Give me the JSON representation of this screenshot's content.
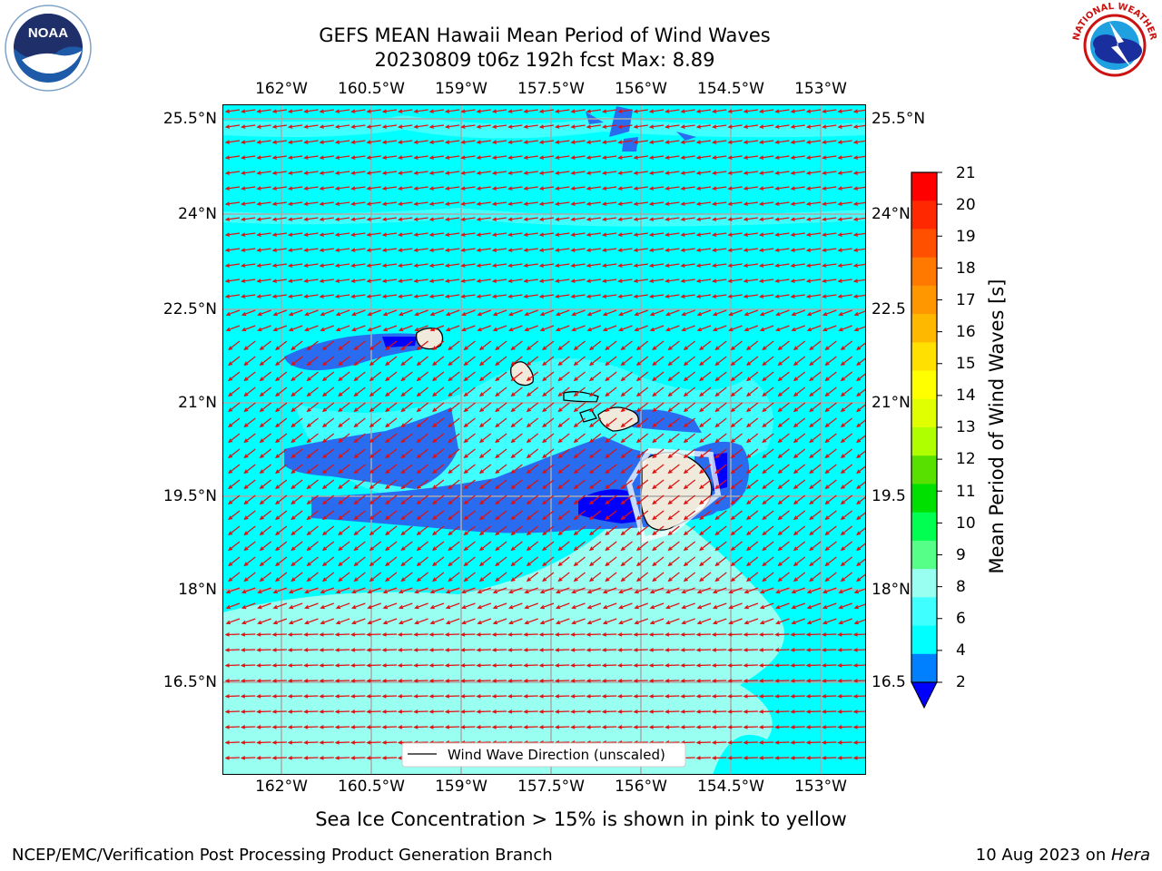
{
  "title": {
    "line1": "GEFS MEAN Hawaii Mean Period of Wind Waves",
    "line2": "20230809 t06z 192h fcst   Max: 8.89"
  },
  "axes": {
    "lon_labels": [
      "162°W",
      "160.5°W",
      "159°W",
      "157.5°W",
      "156°W",
      "154.5°W",
      "153°W"
    ],
    "lat_labels_left": [
      "25.5°N",
      "24°N",
      "22.5°N",
      "21°N",
      "19.5°N",
      "18°N",
      "16.5°N"
    ],
    "lat_labels_right": [
      "25.5°N",
      "24°N",
      "22.5",
      "21°N",
      "19.5",
      "18°N",
      "16.5"
    ]
  },
  "legend": {
    "label": "Wind Wave Direction (unscaled)"
  },
  "colorbar": {
    "label": "Mean Period of Wind Waves [s]",
    "ticks": [
      "21",
      "20",
      "19",
      "18",
      "17",
      "16",
      "15",
      "14",
      "13",
      "12",
      "11",
      "10",
      "9",
      "8",
      "6",
      "4",
      "2"
    ],
    "colors_top_to_bottom": [
      "#ff0000",
      "#ff2800",
      "#ff5000",
      "#ff7800",
      "#ff9800",
      "#ffb800",
      "#ffe000",
      "#ffff00",
      "#e0ff00",
      "#b0ff00",
      "#58e000",
      "#00e000",
      "#00ff50",
      "#55ff88",
      "#99fff0",
      "#40ffff",
      "#00ffff",
      "#0080ff"
    ],
    "extend_color": "#0000ff"
  },
  "map_colors": {
    "ocean_main": "#00ffff",
    "ocean_light": "#99fff0",
    "ocean_mid": "#40ffff",
    "short_period": "#2a6cf0",
    "very_short_period": "#0000ff",
    "land": "#efeadb",
    "arrow": "#e01010"
  },
  "logos": {
    "noaa_text": "NOAA",
    "nws_text": "NATIONAL WEATHER SERVICE"
  },
  "footer": {
    "note": "Sea Ice Concentration > 15% is shown in pink to yellow",
    "left": "NCEP/EMC/Verification Post Processing Product Generation Branch",
    "right_date": "10 Aug 2023 on ",
    "right_host": "Hera"
  }
}
